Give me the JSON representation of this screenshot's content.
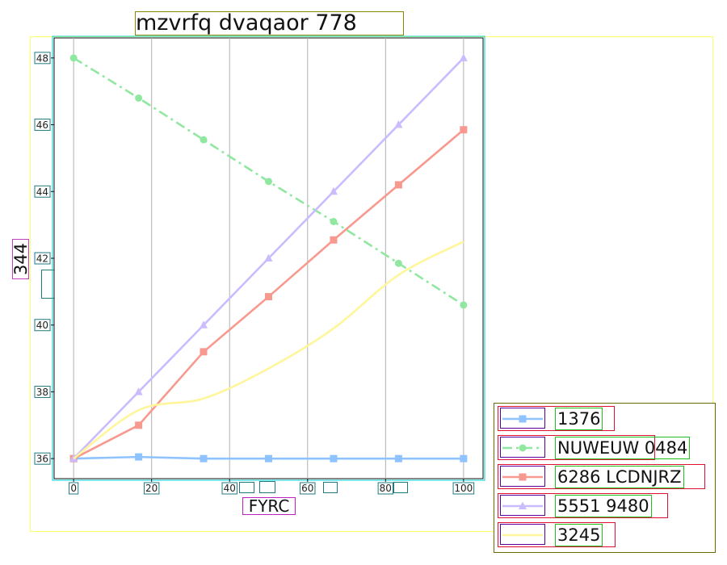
{
  "chart_data": {
    "type": "line",
    "title": "mzvrfq dvaqaor 778",
    "xlabel": "FYRC",
    "ylabel": "344",
    "xlim": [
      -5,
      105
    ],
    "ylim": [
      35.4,
      48.6
    ],
    "x": [
      0,
      16.67,
      33.33,
      50,
      66.67,
      83.33,
      100
    ],
    "x_ticks": [
      0,
      20,
      40,
      60,
      80,
      100
    ],
    "x_tick_labels": [
      "0",
      "20",
      "40",
      "60",
      "80",
      "100"
    ],
    "y_ticks": [
      36,
      38,
      40,
      42,
      44,
      46,
      48
    ],
    "y_tick_labels": [
      "36",
      "38",
      "40",
      "42",
      "44",
      "46",
      "48"
    ],
    "grid": "vertical",
    "legend_position": "bottom-right",
    "series": [
      {
        "name": "1376",
        "values": [
          36.0,
          36.05,
          36.0,
          36.0,
          36.0,
          36.0,
          36.0
        ],
        "color": "#8fc3ff",
        "marker": "square",
        "dash": "solid"
      },
      {
        "name": "NUWEUW 0484",
        "values": [
          48.0,
          46.8,
          45.55,
          44.3,
          43.1,
          41.85,
          40.6
        ],
        "color": "#90e8a0",
        "marker": "circle",
        "dash": "dashdot"
      },
      {
        "name": "6286 LCDNJRZ",
        "values": [
          36.0,
          37.0,
          39.2,
          40.85,
          42.55,
          44.2,
          45.85
        ],
        "color": "#f7998f",
        "marker": "square",
        "dash": "solid"
      },
      {
        "name": "5551 9480",
        "values": [
          36.0,
          38.0,
          40.0,
          42.0,
          44.0,
          46.0,
          48.0
        ],
        "color": "#cbbbff",
        "marker": "triangle",
        "dash": "solid"
      },
      {
        "name": "3245",
        "values": [
          36.0,
          37.45,
          37.8,
          38.7,
          39.9,
          41.5,
          42.5
        ],
        "color": "#fff59a",
        "marker": "none",
        "dash": "solid"
      }
    ]
  }
}
